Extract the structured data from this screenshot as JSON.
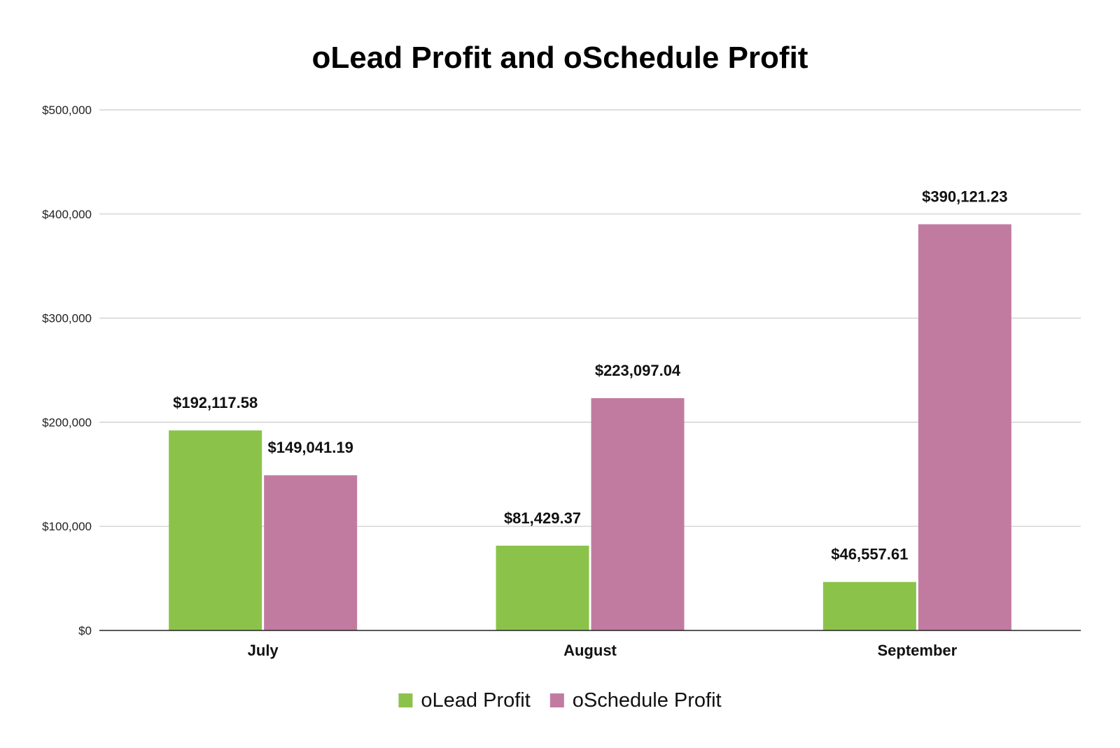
{
  "chart_data": {
    "type": "bar",
    "title": "oLead Profit and oSchedule Profit",
    "xlabel": "",
    "ylabel": "",
    "categories": [
      "July",
      "August",
      "September"
    ],
    "series": [
      {
        "name": "oLead Profit",
        "color": "#8bc34a",
        "values": [
          192117.58,
          81429.37,
          46557.61
        ],
        "labels": [
          "$192,117.58",
          "$81,429.37",
          "$46,557.61"
        ]
      },
      {
        "name": "oSchedule Profit",
        "color": "#c27ba0",
        "values": [
          149041.19,
          223097.04,
          390121.23
        ],
        "labels": [
          "$149,041.19",
          "$223,097.04",
          "$390,121.23"
        ]
      }
    ],
    "ylim": [
      0,
      500000
    ],
    "yticks": [
      0,
      100000,
      200000,
      300000,
      400000,
      500000
    ],
    "ytick_labels": [
      "$0",
      "$100,000",
      "$200,000",
      "$300,000",
      "$400,000",
      "$500,000"
    ],
    "grid": true,
    "legend_position": "bottom"
  }
}
